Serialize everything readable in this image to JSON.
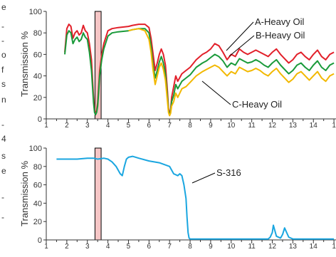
{
  "page_margin_text": [
    "e",
    "-",
    "-",
    "o",
    "f",
    "s",
    "n",
    "-",
    "4",
    "s",
    "e",
    "-",
    "-"
  ],
  "chart_data": [
    {
      "type": "line",
      "ylabel": "Transmission %",
      "xlabel": "",
      "xlim": [
        1,
        15
      ],
      "ylim": [
        0,
        100
      ],
      "x_ticks": [
        "1",
        "2",
        "3",
        "4",
        "5",
        "6",
        "7",
        "8",
        "9",
        "10",
        "11",
        "12",
        "13",
        "14",
        "1"
      ],
      "y_ticks": [
        "0",
        "20",
        "40",
        "60",
        "80",
        "100"
      ],
      "highlight_band": {
        "x": [
          3.37,
          3.67
        ],
        "color": "#f6c6c6"
      },
      "series": [
        {
          "name": "A-Heavy Oil",
          "color": "#e2202a",
          "x": [
            1.9,
            2.0,
            2.1,
            2.2,
            2.3,
            2.4,
            2.5,
            2.6,
            2.7,
            2.8,
            2.9,
            3.0,
            3.1,
            3.2,
            3.3,
            3.35,
            3.4,
            3.45,
            3.5,
            3.55,
            3.6,
            3.7,
            3.8,
            4.0,
            4.2,
            4.5,
            5.0,
            5.2,
            5.5,
            5.8,
            6.0,
            6.1,
            6.2,
            6.3,
            6.4,
            6.5,
            6.6,
            6.7,
            6.8,
            6.9,
            6.95,
            7.0,
            7.05,
            7.1,
            7.2,
            7.3,
            7.4,
            7.6,
            7.8,
            8.0,
            8.3,
            8.6,
            8.8,
            9.0,
            9.2,
            9.4,
            9.6,
            9.8,
            10.0,
            10.2,
            10.4,
            10.6,
            10.8,
            11.0,
            11.2,
            11.4,
            11.6,
            11.8,
            12.0,
            12.2,
            12.4,
            12.6,
            12.8,
            13.0,
            13.2,
            13.4,
            13.6,
            13.8,
            14.0,
            14.2,
            14.4,
            14.6,
            14.8,
            15.0
          ],
          "y": [
            62,
            84,
            88,
            86,
            75,
            80,
            82,
            78,
            80,
            87,
            82,
            80,
            70,
            55,
            20,
            8,
            5,
            8,
            15,
            30,
            45,
            60,
            70,
            82,
            84,
            85,
            86,
            87,
            88,
            88,
            85,
            75,
            60,
            45,
            52,
            60,
            65,
            60,
            50,
            25,
            10,
            5,
            8,
            20,
            30,
            40,
            35,
            42,
            45,
            48,
            55,
            60,
            62,
            65,
            70,
            68,
            62,
            55,
            60,
            58,
            65,
            62,
            60,
            62,
            64,
            62,
            60,
            58,
            62,
            65,
            60,
            56,
            52,
            55,
            60,
            62,
            58,
            55,
            60,
            64,
            58,
            55,
            60,
            62
          ]
        },
        {
          "name": "B-Heavy Oil",
          "color": "#1a9a3a",
          "x": [
            1.9,
            2.0,
            2.1,
            2.2,
            2.3,
            2.4,
            2.5,
            2.6,
            2.7,
            2.8,
            2.9,
            3.0,
            3.1,
            3.2,
            3.3,
            3.35,
            3.4,
            3.45,
            3.5,
            3.55,
            3.6,
            3.7,
            3.8,
            4.0,
            4.2,
            4.5,
            5.0,
            5.2,
            5.5,
            5.8,
            6.0,
            6.1,
            6.2,
            6.3,
            6.4,
            6.5,
            6.6,
            6.7,
            6.8,
            6.9,
            6.95,
            7.0,
            7.05,
            7.1,
            7.2,
            7.3,
            7.4,
            7.6,
            7.8,
            8.0,
            8.3,
            8.6,
            8.8,
            9.0,
            9.2,
            9.4,
            9.6,
            9.8,
            10.0,
            10.2,
            10.4,
            10.6,
            10.8,
            11.0,
            11.2,
            11.4,
            11.6,
            11.8,
            12.0,
            12.2,
            12.4,
            12.6,
            12.8,
            13.0,
            13.2,
            13.4,
            13.6,
            13.8,
            14.0,
            14.2,
            14.4,
            14.6,
            14.8,
            15.0
          ],
          "y": [
            60,
            78,
            82,
            80,
            70,
            74,
            76,
            72,
            74,
            80,
            76,
            74,
            62,
            45,
            15,
            6,
            4,
            6,
            12,
            25,
            40,
            55,
            65,
            77,
            80,
            81,
            82,
            83,
            84,
            84,
            80,
            68,
            50,
            38,
            45,
            53,
            58,
            52,
            42,
            20,
            8,
            4,
            6,
            16,
            22,
            32,
            28,
            35,
            38,
            41,
            48,
            52,
            54,
            57,
            60,
            58,
            54,
            48,
            52,
            50,
            56,
            54,
            52,
            53,
            55,
            53,
            50,
            48,
            52,
            55,
            50,
            46,
            42,
            45,
            50,
            52,
            48,
            45,
            50,
            54,
            48,
            45,
            50,
            52
          ]
        },
        {
          "name": "C-Heavy Oil",
          "color": "#f2b800",
          "x": [
            5.0,
            5.2,
            5.5,
            5.8,
            6.0,
            6.1,
            6.2,
            6.3,
            6.4,
            6.5,
            6.6,
            6.7,
            6.8,
            6.9,
            6.95,
            7.0,
            7.05,
            7.1,
            7.2,
            7.3,
            7.4,
            7.6,
            7.8,
            8.0,
            8.3,
            8.6,
            8.8,
            9.0,
            9.2,
            9.4,
            9.6,
            9.8,
            10.0,
            10.2,
            10.4,
            10.6,
            10.8,
            11.0,
            11.2,
            11.4,
            11.6,
            11.8,
            12.0,
            12.2,
            12.4,
            12.6,
            12.8,
            13.0,
            13.2,
            13.4,
            13.6,
            13.8,
            14.0,
            14.2,
            14.4,
            14.6,
            14.8,
            15.0
          ],
          "y": [
            82,
            83,
            84,
            82,
            74,
            62,
            45,
            32,
            40,
            48,
            52,
            46,
            36,
            16,
            6,
            3,
            5,
            12,
            16,
            24,
            20,
            28,
            30,
            34,
            40,
            44,
            46,
            48,
            50,
            48,
            44,
            40,
            44,
            42,
            48,
            46,
            44,
            45,
            47,
            45,
            42,
            40,
            44,
            47,
            42,
            38,
            34,
            37,
            42,
            44,
            40,
            36,
            40,
            44,
            38,
            35,
            40,
            42
          ]
        }
      ],
      "annotations": [
        {
          "text": "A-Heavy Oil",
          "series": 0
        },
        {
          "text": "B-Heavy Oil",
          "series": 1
        },
        {
          "text": "C-Heavy Oil",
          "series": 2
        }
      ]
    },
    {
      "type": "line",
      "ylabel": "Transmission %",
      "xlabel": "",
      "xlim": [
        1,
        15
      ],
      "ylim": [
        0,
        100
      ],
      "x_ticks": [
        "1",
        "2",
        "3",
        "4",
        "5",
        "6",
        "7",
        "8",
        "9",
        "10",
        "11",
        "12",
        "13",
        "14",
        "1"
      ],
      "y_ticks": [
        "0",
        "20",
        "40",
        "60",
        "80",
        "100"
      ],
      "highlight_band": {
        "x": [
          3.37,
          3.67
        ],
        "color": "#f6c6c6"
      },
      "series": [
        {
          "name": "S-316",
          "color": "#1aa6e0",
          "x": [
            1.5,
            2.0,
            2.5,
            3.0,
            3.3,
            3.5,
            3.8,
            4.0,
            4.2,
            4.4,
            4.6,
            4.7,
            4.8,
            4.9,
            5.0,
            5.2,
            5.5,
            6.0,
            6.5,
            7.0,
            7.2,
            7.4,
            7.5,
            7.6,
            7.7,
            7.8,
            7.85,
            7.9,
            7.95,
            8.0,
            8.05,
            8.2,
            8.5,
            9.0,
            10.0,
            11.0,
            11.8,
            11.9,
            12.0,
            12.05,
            12.2,
            12.4,
            12.5,
            12.6,
            12.8,
            13.0,
            13.5,
            14.0,
            14.5,
            15.0
          ],
          "y": [
            88,
            88,
            88,
            89,
            89,
            88,
            89,
            88,
            85,
            80,
            72,
            70,
            80,
            88,
            90,
            91,
            89,
            86,
            84,
            80,
            72,
            70,
            72,
            70,
            60,
            45,
            25,
            8,
            2,
            1,
            1,
            1,
            1,
            1,
            1,
            1,
            1,
            3,
            8,
            16,
            4,
            2,
            6,
            13,
            3,
            1,
            1,
            1,
            1,
            1
          ]
        }
      ],
      "annotations": [
        {
          "text": "S-316",
          "series": 0
        }
      ]
    }
  ]
}
